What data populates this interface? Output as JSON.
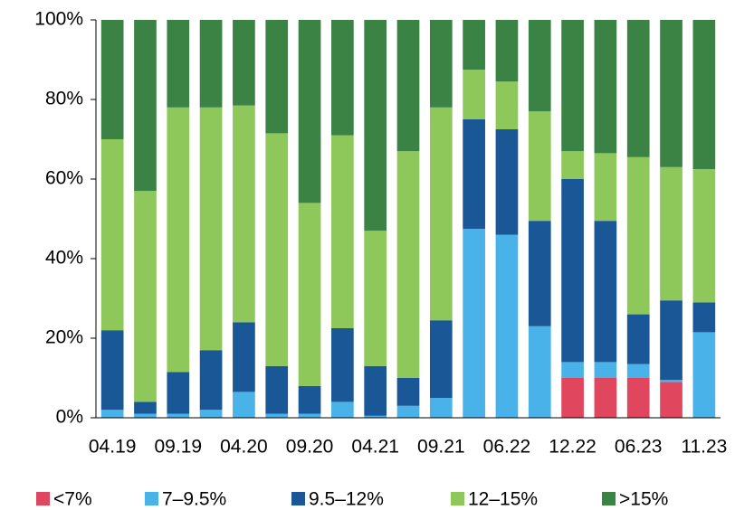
{
  "chart_data": {
    "type": "stacked_bar",
    "categories": [
      "04.19",
      null,
      "09.19",
      null,
      "04.20",
      null,
      "09.20",
      null,
      "04.21",
      null,
      "09.21",
      null,
      "06.22",
      null,
      "12.22",
      null,
      "06.23",
      null,
      "11.23"
    ],
    "series": [
      {
        "name": "<7%",
        "color": "#e0475f",
        "values": [
          0,
          0,
          0,
          0,
          0,
          0,
          0,
          0,
          0,
          0,
          0,
          0,
          0,
          0,
          10,
          10,
          10,
          9,
          0
        ]
      },
      {
        "name": "7–9.5%",
        "color": "#49b2e8",
        "values": [
          2,
          1,
          1,
          2,
          6.5,
          1,
          1,
          4,
          0.5,
          3,
          5,
          47.5,
          46,
          23,
          4,
          4,
          3.5,
          0.5,
          21.5
        ]
      },
      {
        "name": "9.5–12%",
        "color": "#1a5796",
        "values": [
          20,
          3,
          10.5,
          15,
          17.5,
          12,
          7,
          18.5,
          12.5,
          7,
          19.5,
          27.5,
          26.5,
          26.5,
          46,
          35.5,
          12.5,
          20,
          7.5
        ]
      },
      {
        "name": "12–15%",
        "color": "#8ec75a",
        "values": [
          48,
          53,
          66.5,
          61,
          54.5,
          58.5,
          46,
          48.5,
          34,
          57,
          53.5,
          12.5,
          12,
          27.5,
          7,
          17,
          39.5,
          33.5,
          33.5
        ]
      },
      {
        "name": ">15%",
        "color": "#3b8345",
        "values": [
          30,
          43,
          22,
          22,
          21.5,
          28.5,
          46,
          29,
          53,
          33,
          22,
          12.5,
          15.5,
          23,
          33,
          33.5,
          34.5,
          37,
          37.5
        ]
      }
    ],
    "ylim": [
      0,
      100
    ],
    "yticks": [
      {
        "value": 0,
        "label": "0%"
      },
      {
        "value": 20,
        "label": "20%"
      },
      {
        "value": 40,
        "label": "40%"
      },
      {
        "value": 60,
        "label": "60%"
      },
      {
        "value": 80,
        "label": "80%"
      },
      {
        "value": 100,
        "label": "100%"
      }
    ],
    "legend": "bottom"
  }
}
